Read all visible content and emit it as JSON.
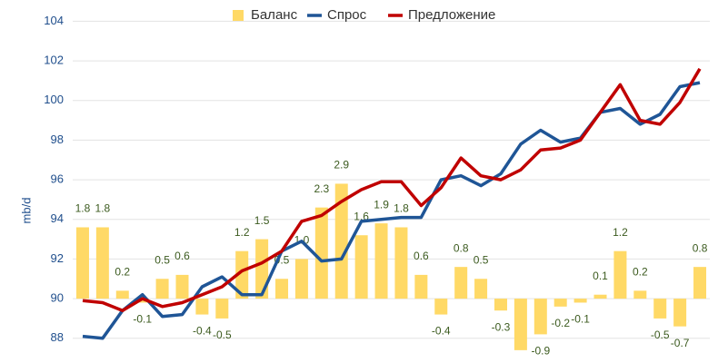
{
  "chart_data": {
    "type": "bar-line",
    "y_axis_label": "mb/d",
    "categories": [
      null,
      null,
      null,
      null,
      null,
      null,
      null,
      null,
      null,
      null,
      null,
      null,
      null,
      null,
      null,
      null,
      null,
      null,
      null,
      null,
      null,
      null,
      null,
      null,
      null,
      null,
      null,
      null,
      null,
      null,
      null,
      null
    ],
    "ylim": [
      87,
      104
    ],
    "yticks": [
      88,
      90,
      92,
      94,
      96,
      98,
      100,
      102,
      104
    ],
    "y2lim": [
      -1.5,
      7
    ],
    "grid": true,
    "legend": "top",
    "series": [
      {
        "name": "Баланс",
        "type": "bar",
        "axis": "y2",
        "color": "#ffd966",
        "values": [
          1.8,
          1.8,
          0.2,
          -0.1,
          0.5,
          0.6,
          -0.4,
          -0.5,
          1.2,
          1.5,
          0.5,
          1.0,
          2.3,
          2.9,
          1.6,
          1.9,
          1.8,
          0.6,
          -0.4,
          0.8,
          0.5,
          -0.3,
          -1.3,
          -0.9,
          -0.2,
          -0.1,
          0.1,
          1.2,
          0.2,
          -0.5,
          -0.7,
          0.8
        ],
        "value_labels": [
          "1.8",
          "1.8",
          "0.2",
          "-0.1",
          "0.5",
          "0.6",
          "-0.4",
          "-0.5",
          "1.2",
          "1.5",
          "0.5",
          "1.0",
          "2.3",
          "2.9",
          "1.6",
          "1.9",
          "1.8",
          "0.6",
          "-0.4",
          "0.8",
          "0.5",
          "-0.3",
          null,
          "-0.9",
          "-0.2",
          "-0.1",
          "0.1",
          "1.2",
          "0.2",
          "-0.5",
          "-0.7",
          "0.8"
        ]
      },
      {
        "name": "Спрос",
        "type": "line",
        "color": "#1f5596",
        "values": [
          88.1,
          88.0,
          89.4,
          90.2,
          89.1,
          89.2,
          90.6,
          91.1,
          90.2,
          90.2,
          92.4,
          92.9,
          91.9,
          92.0,
          93.9,
          94.0,
          94.1,
          94.1,
          96.0,
          96.2,
          95.7,
          96.3,
          97.8,
          98.5,
          97.9,
          98.1,
          99.4,
          99.6,
          98.8,
          99.3,
          100.7,
          100.9
        ]
      },
      {
        "name": "Предложение",
        "type": "line",
        "color": "#c00000",
        "values": [
          89.9,
          89.8,
          89.4,
          90.0,
          89.6,
          89.8,
          90.2,
          90.6,
          91.4,
          91.8,
          92.4,
          93.9,
          94.2,
          94.9,
          95.5,
          95.9,
          95.9,
          94.7,
          95.6,
          97.1,
          96.2,
          96.0,
          96.5,
          97.5,
          97.6,
          98.0,
          99.4,
          100.8,
          99.0,
          98.8,
          99.9,
          101.6
        ]
      }
    ]
  }
}
